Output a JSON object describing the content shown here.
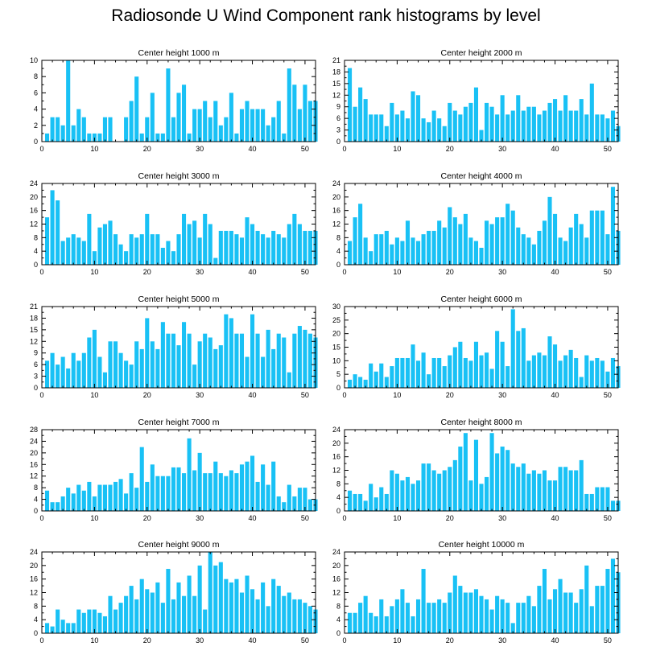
{
  "figure_title": "Radiosonde U Wind Component rank histograms by level",
  "bar_color": "#19c1f5",
  "chart_data": [
    {
      "type": "bar",
      "title": "Center height 1000 m",
      "ylim": [
        0,
        10
      ],
      "yticks": [
        0,
        2,
        4,
        6,
        8,
        10
      ],
      "xlim": [
        0,
        52
      ],
      "xticks": [
        0,
        10,
        20,
        30,
        40,
        50
      ],
      "values": [
        1,
        3,
        3,
        2,
        10,
        2,
        4,
        3,
        1,
        1,
        1,
        3,
        3,
        0,
        0,
        3,
        5,
        8,
        1,
        3,
        6,
        1,
        1,
        9,
        3,
        6,
        7,
        1,
        4,
        4,
        5,
        3,
        5,
        2,
        3,
        6,
        1,
        4,
        5,
        4,
        4,
        4,
        2,
        3,
        5,
        1,
        9,
        7,
        4,
        7,
        5,
        5
      ]
    },
    {
      "type": "bar",
      "title": "Center height 2000 m",
      "ylim": [
        0,
        21
      ],
      "yticks": [
        0,
        3,
        6,
        9,
        12,
        15,
        18,
        21
      ],
      "xlim": [
        0,
        52
      ],
      "xticks": [
        0,
        10,
        20,
        30,
        40,
        50
      ],
      "values": [
        19,
        9,
        14,
        11,
        7,
        7,
        7,
        4,
        10,
        7,
        8,
        6,
        13,
        12,
        6,
        5,
        8,
        6,
        4,
        10,
        8,
        7,
        9,
        10,
        14,
        3,
        10,
        9,
        7,
        12,
        7,
        8,
        12,
        8,
        9,
        9,
        7,
        8,
        10,
        11,
        8,
        12,
        8,
        8,
        11,
        7,
        15,
        7,
        7,
        6,
        8,
        4
      ]
    },
    {
      "type": "bar",
      "title": "Center height 3000 m",
      "ylim": [
        0,
        24
      ],
      "yticks": [
        0,
        4,
        8,
        12,
        16,
        20,
        24
      ],
      "xlim": [
        0,
        52
      ],
      "xticks": [
        0,
        10,
        20,
        30,
        40,
        50
      ],
      "values": [
        14,
        22,
        19,
        7,
        8,
        9,
        8,
        7,
        15,
        4,
        11,
        12,
        13,
        9,
        6,
        4,
        9,
        8,
        9,
        15,
        9,
        9,
        5,
        7,
        4,
        9,
        15,
        12,
        13,
        8,
        15,
        12,
        2,
        10,
        10,
        10,
        9,
        8,
        14,
        12,
        10,
        9,
        8,
        10,
        9,
        8,
        12,
        15,
        12,
        10,
        10,
        10
      ]
    },
    {
      "type": "bar",
      "title": "Center height 4000 m",
      "ylim": [
        0,
        24
      ],
      "yticks": [
        0,
        4,
        8,
        12,
        16,
        20,
        24
      ],
      "xlim": [
        0,
        52
      ],
      "xticks": [
        0,
        10,
        20,
        30,
        40,
        50
      ],
      "values": [
        7,
        14,
        18,
        8,
        4,
        9,
        9,
        10,
        6,
        8,
        7,
        13,
        8,
        7,
        9,
        10,
        10,
        13,
        11,
        17,
        14,
        12,
        15,
        8,
        7,
        5,
        13,
        12,
        14,
        14,
        18,
        16,
        11,
        9,
        8,
        6,
        10,
        13,
        20,
        15,
        8,
        7,
        11,
        15,
        12,
        8,
        16,
        16,
        16,
        9,
        23,
        10
      ]
    },
    {
      "type": "bar",
      "title": "Center height 5000 m",
      "ylim": [
        0,
        21
      ],
      "yticks": [
        0,
        3,
        6,
        9,
        12,
        15,
        18,
        21
      ],
      "xlim": [
        0,
        52
      ],
      "xticks": [
        0,
        10,
        20,
        30,
        40,
        50
      ],
      "values": [
        7,
        9,
        6,
        8,
        5,
        9,
        7,
        9,
        13,
        15,
        8,
        4,
        12,
        12,
        9,
        7,
        6,
        12,
        10,
        18,
        12,
        10,
        17,
        14,
        14,
        11,
        17,
        14,
        6,
        12,
        14,
        13,
        10,
        11,
        19,
        18,
        14,
        14,
        8,
        19,
        14,
        8,
        15,
        10,
        14,
        13,
        4,
        14,
        16,
        15,
        14,
        13
      ]
    },
    {
      "type": "bar",
      "title": "Center height 6000 m",
      "ylim": [
        0,
        30
      ],
      "yticks": [
        0,
        5,
        10,
        15,
        20,
        25,
        30
      ],
      "xlim": [
        0,
        52
      ],
      "xticks": [
        0,
        10,
        20,
        30,
        40,
        50
      ],
      "values": [
        3,
        5,
        4,
        3,
        9,
        6,
        9,
        4,
        8,
        11,
        11,
        11,
        16,
        10,
        13,
        5,
        11,
        11,
        8,
        12,
        15,
        17,
        11,
        10,
        17,
        12,
        13,
        7,
        21,
        17,
        8,
        29,
        21,
        22,
        10,
        12,
        13,
        12,
        19,
        16,
        10,
        12,
        14,
        11,
        4,
        12,
        10,
        11,
        10,
        6,
        11,
        8
      ]
    },
    {
      "type": "bar",
      "title": "Center height 7000 m",
      "ylim": [
        0,
        28
      ],
      "yticks": [
        0,
        4,
        8,
        12,
        16,
        20,
        24,
        28
      ],
      "xlim": [
        0,
        52
      ],
      "xticks": [
        0,
        10,
        20,
        30,
        40,
        50
      ],
      "values": [
        7,
        3,
        3,
        5,
        8,
        6,
        9,
        7,
        10,
        5,
        9,
        9,
        9,
        10,
        11,
        6,
        13,
        8,
        22,
        10,
        16,
        12,
        12,
        12,
        15,
        15,
        13,
        25,
        14,
        20,
        13,
        13,
        17,
        13,
        12,
        14,
        13,
        16,
        17,
        19,
        10,
        16,
        9,
        17,
        5,
        3,
        9,
        5,
        8,
        8,
        4,
        4
      ]
    },
    {
      "type": "bar",
      "title": "Center height 8000 m",
      "ylim": [
        0,
        24
      ],
      "yticks": [
        0,
        4,
        8,
        12,
        16,
        20,
        24
      ],
      "xlim": [
        0,
        52
      ],
      "xticks": [
        0,
        10,
        20,
        30,
        40,
        50
      ],
      "values": [
        6,
        5,
        5,
        3,
        8,
        4,
        7,
        5,
        12,
        11,
        9,
        10,
        8,
        9,
        14,
        14,
        12,
        11,
        12,
        13,
        15,
        19,
        23,
        9,
        21,
        8,
        10,
        23,
        17,
        19,
        18,
        14,
        13,
        14,
        11,
        12,
        11,
        12,
        9,
        9,
        13,
        13,
        12,
        12,
        15,
        5,
        5,
        7,
        7,
        7,
        3,
        3
      ]
    },
    {
      "type": "bar",
      "title": "Center height 9000 m",
      "ylim": [
        0,
        24
      ],
      "yticks": [
        0,
        4,
        8,
        12,
        16,
        20,
        24
      ],
      "xlim": [
        0,
        52
      ],
      "xticks": [
        0,
        10,
        20,
        30,
        40,
        50
      ],
      "values": [
        3,
        2,
        7,
        4,
        3,
        3,
        7,
        6,
        7,
        7,
        6,
        5,
        11,
        7,
        9,
        11,
        14,
        10,
        16,
        13,
        12,
        15,
        9,
        19,
        10,
        15,
        11,
        17,
        11,
        20,
        7,
        24,
        20,
        21,
        16,
        15,
        16,
        12,
        17,
        13,
        10,
        15,
        8,
        16,
        14,
        11,
        12,
        10,
        10,
        9,
        8,
        7
      ]
    },
    {
      "type": "bar",
      "title": "Center height 10000 m",
      "ylim": [
        0,
        24
      ],
      "yticks": [
        0,
        4,
        8,
        12,
        16,
        20,
        24
      ],
      "xlim": [
        0,
        52
      ],
      "xticks": [
        0,
        10,
        20,
        30,
        40,
        50
      ],
      "values": [
        6,
        6,
        9,
        11,
        6,
        5,
        10,
        5,
        8,
        10,
        13,
        9,
        5,
        10,
        19,
        9,
        9,
        10,
        9,
        12,
        17,
        14,
        12,
        12,
        13,
        11,
        10,
        7,
        11,
        10,
        9,
        3,
        9,
        9,
        11,
        8,
        14,
        19,
        10,
        13,
        16,
        12,
        12,
        9,
        13,
        20,
        8,
        14,
        14,
        19,
        22,
        18
      ]
    }
  ]
}
